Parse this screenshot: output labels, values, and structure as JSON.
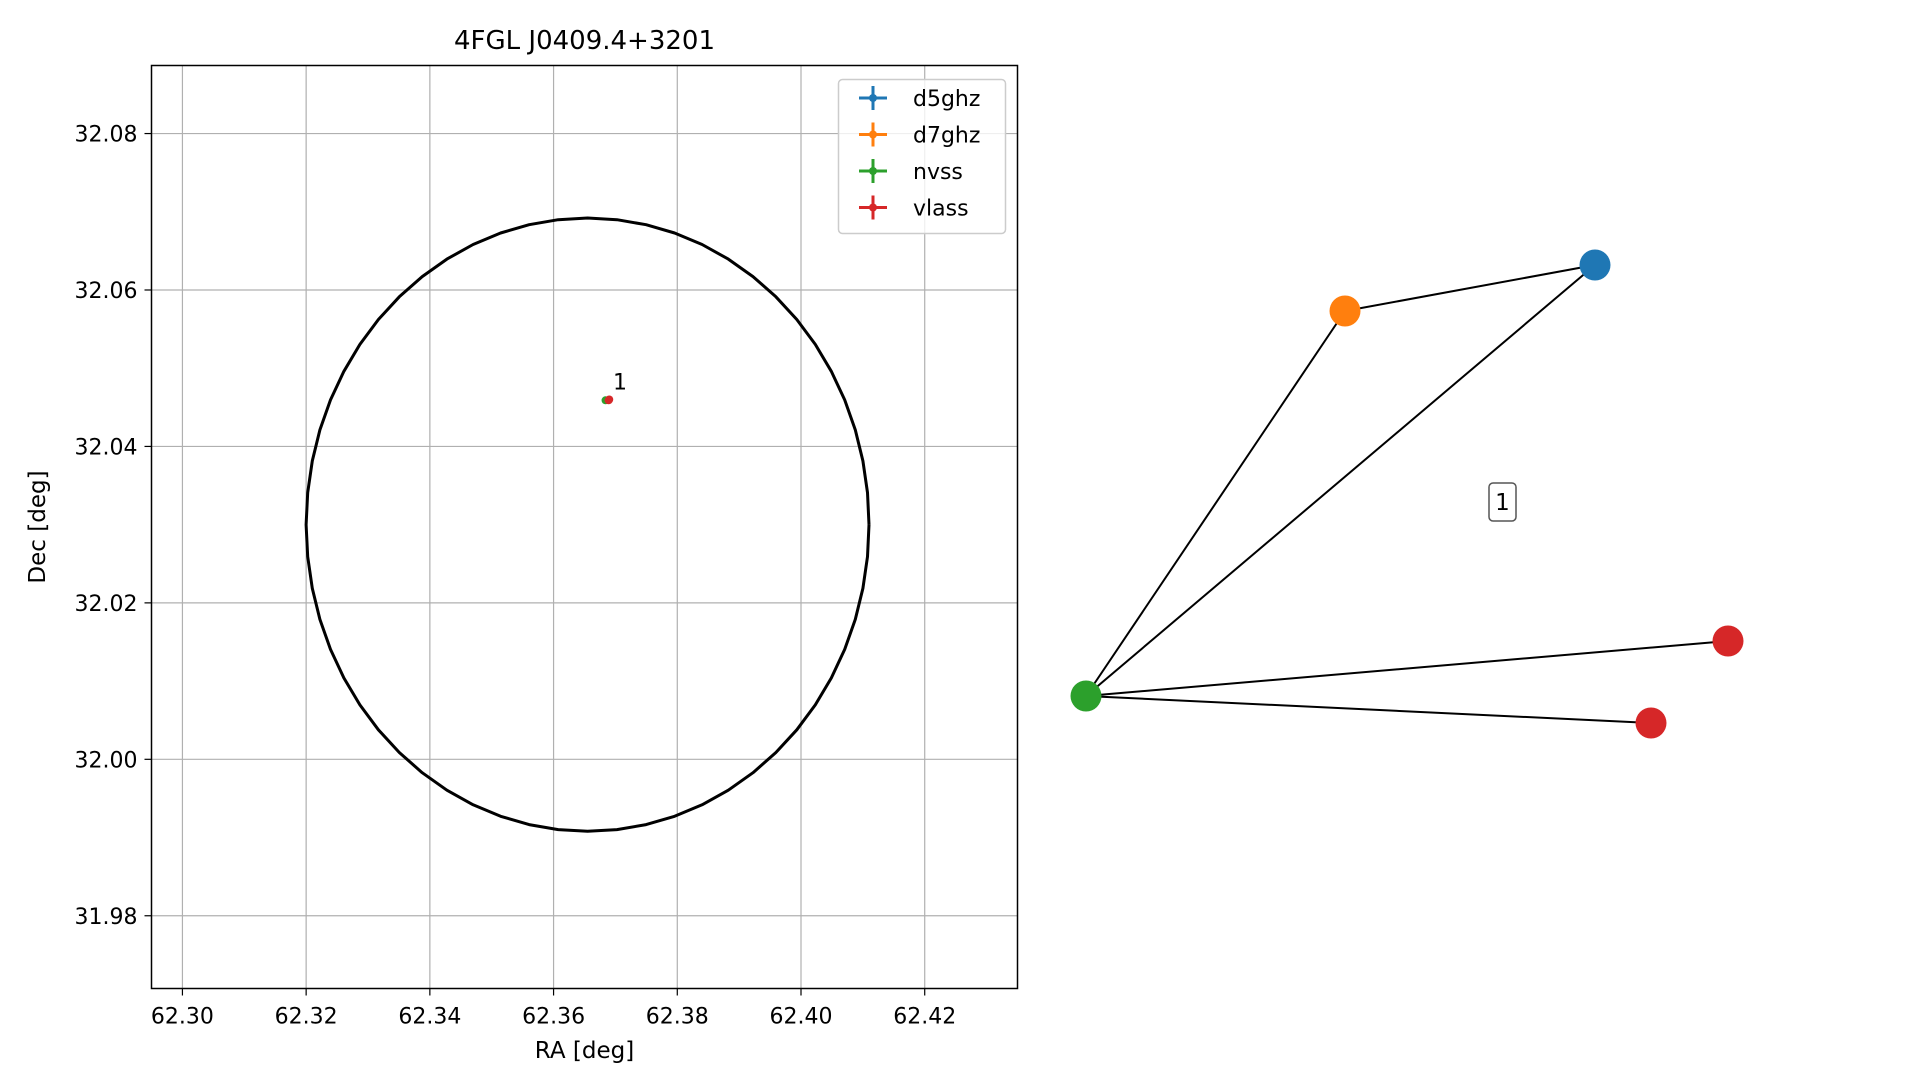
{
  "chart_data": [
    {
      "type": "scatter",
      "title": "4FGL J0409.4+3201",
      "xlabel": "RA [deg]",
      "ylabel": "Dec [deg]",
      "xlim": [
        62.295,
        62.435
      ],
      "ylim": [
        31.9707,
        32.0887
      ],
      "x_ticks": [
        "62.30",
        "62.32",
        "62.34",
        "62.36",
        "62.38",
        "62.40",
        "62.42"
      ],
      "y_ticks": [
        "31.98",
        "32.00",
        "32.02",
        "32.04",
        "32.06",
        "32.08"
      ],
      "grid": true,
      "legend_position": "upper right",
      "legend": [
        {
          "name": "d5ghz",
          "color": "#1f77b4"
        },
        {
          "name": "d7ghz",
          "color": "#ff7f0e"
        },
        {
          "name": "nvss",
          "color": "#2ca02c"
        },
        {
          "name": "vlass",
          "color": "#d62728"
        }
      ],
      "points": [
        {
          "series": "nvss",
          "ra": 62.3684,
          "dec": 32.0459
        },
        {
          "series": "vlass",
          "ra": 62.369,
          "dec": 32.046
        },
        {
          "series": "vlass",
          "ra": 62.3689,
          "dec": 32.0459
        }
      ],
      "annotations": [
        {
          "text": "1",
          "ra": 62.3696,
          "dec": 32.0473
        }
      ],
      "ellipse": {
        "center_ra": 62.3655,
        "center_dec": 32.03,
        "half_width_ra": 0.0455,
        "half_height_dec": 0.0392,
        "color": "#000000"
      }
    },
    {
      "type": "network",
      "label": "1",
      "nodes": [
        {
          "id": "d5ghz",
          "color": "#1f77b4"
        },
        {
          "id": "d7ghz",
          "color": "#ff7f0e"
        },
        {
          "id": "nvss",
          "color": "#2ca02c"
        },
        {
          "id": "vlass_1",
          "color": "#d62728"
        },
        {
          "id": "vlass_2",
          "color": "#d62728"
        }
      ],
      "edges": [
        [
          "d7ghz",
          "d5ghz"
        ],
        [
          "nvss",
          "d7ghz"
        ],
        [
          "nvss",
          "d5ghz"
        ],
        [
          "nvss",
          "vlass_1"
        ],
        [
          "nvss",
          "vlass_2"
        ]
      ]
    }
  ]
}
